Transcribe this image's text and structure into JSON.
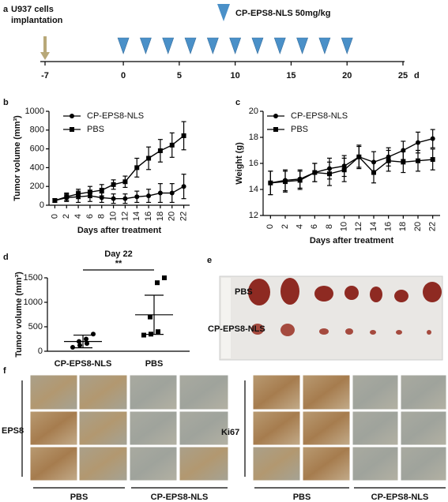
{
  "panel_labels": [
    "a",
    "b",
    "c",
    "d",
    "e",
    "f"
  ],
  "chart_data": [
    {
      "type": "timeline",
      "annotation_lines": [
        "U937 cells",
        "implantation"
      ],
      "event_x": -7,
      "dose_label": "CP-EPS8-NLS 50mg/kg",
      "dose_x": [
        0,
        2,
        4,
        6,
        8,
        10,
        12,
        14,
        16,
        18,
        20
      ],
      "xlim": [
        -7,
        25
      ],
      "xticks": [
        -7,
        0,
        5,
        10,
        15,
        20,
        25
      ],
      "unit": "d",
      "event_color": "#b8a878",
      "dose_color": "#4a90c8"
    },
    {
      "type": "line",
      "xlabel": "Days after treatment",
      "ylabel": "Tumor volume (mm³)",
      "x": [
        0,
        2,
        4,
        6,
        8,
        10,
        12,
        14,
        16,
        18,
        20,
        22
      ],
      "xlim": [
        -1,
        23
      ],
      "xticks": [
        0,
        2,
        4,
        6,
        8,
        10,
        12,
        14,
        16,
        18,
        20,
        22
      ],
      "ylim": [
        0,
        1000
      ],
      "yticks": [
        0,
        200,
        400,
        600,
        800,
        1000
      ],
      "series": [
        {
          "name": "CP-EPS8-NLS",
          "marker": "circle",
          "color": "#000000",
          "values": [
            50,
            80,
            90,
            100,
            80,
            70,
            70,
            90,
            100,
            130,
            130,
            200
          ],
          "errors": [
            20,
            40,
            60,
            60,
            50,
            50,
            50,
            60,
            70,
            100,
            100,
            130
          ]
        },
        {
          "name": "PBS",
          "marker": "square",
          "color": "#000000",
          "values": [
            50,
            90,
            120,
            140,
            160,
            220,
            250,
            400,
            500,
            580,
            640,
            740
          ],
          "errors": [
            20,
            40,
            50,
            60,
            60,
            50,
            60,
            100,
            120,
            120,
            130,
            150
          ]
        }
      ]
    },
    {
      "type": "line",
      "xlabel": "Days after treatment",
      "ylabel": "Weight (g)",
      "x": [
        0,
        2,
        4,
        6,
        8,
        10,
        12,
        14,
        16,
        18,
        20,
        22
      ],
      "xlim": [
        -1,
        23
      ],
      "xticks": [
        0,
        2,
        4,
        6,
        8,
        10,
        12,
        14,
        16,
        18,
        20,
        22
      ],
      "ylim": [
        12,
        20
      ],
      "yticks": [
        12,
        14,
        16,
        18,
        20
      ],
      "series": [
        {
          "name": "CP-EPS8-NLS",
          "marker": "circle",
          "color": "#000000",
          "values": [
            14.5,
            14.7,
            14.8,
            15.3,
            15.6,
            15.8,
            16.5,
            16.1,
            16.5,
            17.0,
            17.6,
            17.9
          ],
          "errors": [
            0.9,
            0.8,
            0.7,
            0.7,
            0.8,
            0.8,
            0.9,
            0.8,
            0.7,
            0.7,
            0.8,
            0.7
          ]
        },
        {
          "name": "PBS",
          "marker": "square",
          "color": "#000000",
          "values": [
            14.5,
            14.6,
            14.7,
            15.3,
            15.2,
            15.5,
            16.5,
            15.3,
            16.2,
            16.1,
            16.2,
            16.3
          ],
          "errors": [
            0.9,
            0.8,
            0.7,
            0.7,
            0.9,
            0.9,
            0.8,
            0.8,
            0.8,
            0.8,
            0.8,
            0.8
          ]
        }
      ]
    },
    {
      "type": "dot",
      "title": "Day 22",
      "annotation": "**",
      "ylabel": "Tumor volume (mm³)",
      "categories": [
        "CP-EPS8-NLS",
        "PBS"
      ],
      "markers": [
        "circle",
        "square"
      ],
      "points": [
        [
          80,
          120,
          160,
          200,
          250,
          350
        ],
        [
          330,
          350,
          400,
          700,
          1400,
          1500
        ]
      ],
      "means": [
        200,
        745
      ],
      "sd": [
        130,
        400
      ],
      "ylim": [
        0,
        1500
      ],
      "yticks": [
        0,
        500,
        1000,
        1500
      ]
    }
  ],
  "photo": {
    "row_labels": [
      "PBS",
      "CP-EPS8-NLS"
    ]
  },
  "ihc": {
    "stains": [
      "EPS8",
      "Ki67"
    ],
    "groups": [
      "PBS",
      "CP-EPS8-NLS"
    ]
  }
}
